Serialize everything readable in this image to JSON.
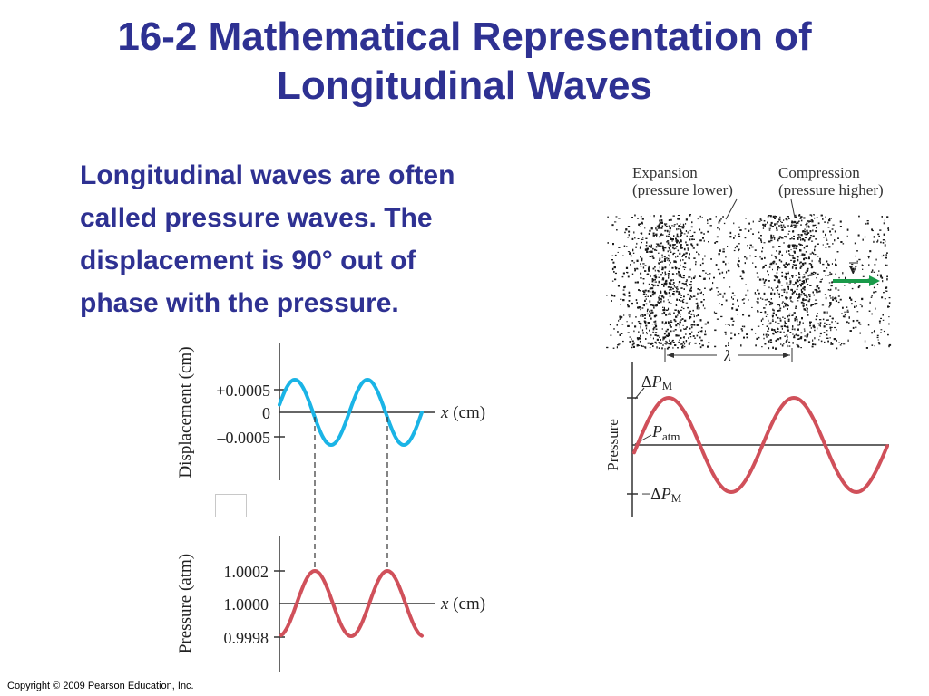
{
  "title": {
    "line1": "16-2 Mathematical Representation of",
    "line2": "Longitudinal Waves"
  },
  "body_text": {
    "line1": "Longitudinal waves are often",
    "line2": "called pressure waves. The",
    "line3": "displacement is 90° out of",
    "line4": "phase with the pressure."
  },
  "copyright": "Copyright © 2009 Pearson Education, Inc.",
  "displacement_graph": {
    "y_label": "Displacement (cm)",
    "x_label": "x (cm)",
    "ticks": [
      "+0.0005",
      "0",
      "–0.0005"
    ],
    "curve_color": "#1ab4e6"
  },
  "pressure_graph": {
    "y_label": "Pressure (atm)",
    "x_label": "x (cm)",
    "ticks": [
      "1.0002",
      "1.0000",
      "0.9998"
    ],
    "curve_color": "#d0505a"
  },
  "compression_diagram": {
    "expansion_label_1": "Expansion",
    "expansion_label_2": "(pressure lower)",
    "compression_label_1": "Compression",
    "compression_label_2": "(pressure higher)",
    "velocity_label": "v",
    "wavelength_label": "λ",
    "arrow_color": "#1a9a4a"
  },
  "pressure_wave": {
    "y_label": "Pressure",
    "top_label_delta": "Δ",
    "top_label_p": "P",
    "top_label_sub": "M",
    "mid_label_p": "P",
    "mid_label_sub": "atm",
    "bottom_label_prefix": "−Δ",
    "bottom_label_p": "P",
    "bottom_label_sub": "M",
    "curve_color": "#d0505a"
  }
}
